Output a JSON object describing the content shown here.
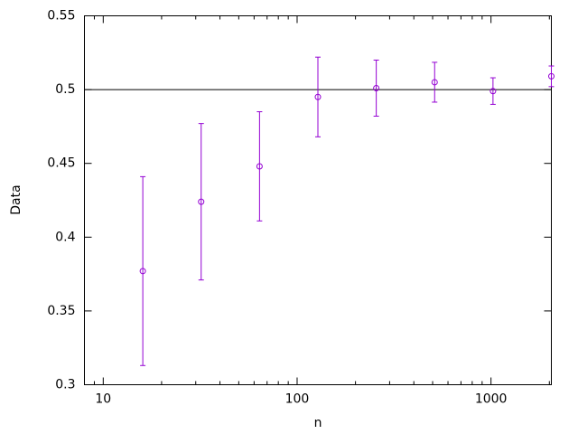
{
  "chart_data": {
    "type": "errorbar",
    "xlabel": "n",
    "ylabel": "Data",
    "x": [
      16,
      32,
      64,
      128,
      256,
      512,
      1024,
      2048
    ],
    "series": [
      {
        "color": "#9400d3",
        "values": [
          0.377,
          0.424,
          0.448,
          0.495,
          0.501,
          0.505,
          0.499,
          0.509
        ],
        "errors": [
          0.064,
          0.053,
          0.037,
          0.027,
          0.019,
          0.0135,
          0.009,
          0.007
        ]
      }
    ],
    "reference_line": 0.5,
    "xscale": "log",
    "xlim": [
      8,
      2048
    ],
    "xticks": [
      10,
      100,
      1000
    ],
    "ylim": [
      0.3,
      0.55
    ],
    "yticks": [
      0.3,
      0.35,
      0.4,
      0.45,
      0.5,
      0.55
    ]
  }
}
